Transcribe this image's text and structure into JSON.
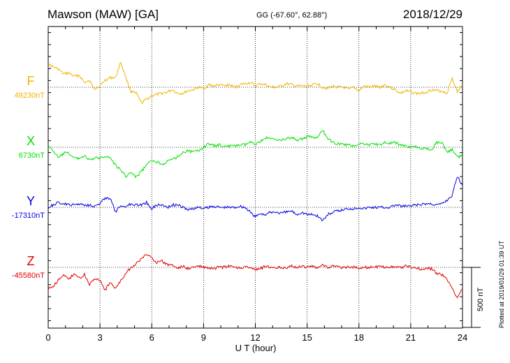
{
  "header": {
    "station": "Mawson (MAW)  [GA]",
    "coords": "GG (-67.60°,  62.88°)",
    "date": "2018/12/29"
  },
  "plot_note": "Plotted at 2019/01/29 01:39 UT",
  "scale_label": "500 nT",
  "chart_data": {
    "type": "line",
    "title": "Mawson (MAW)  [GA]",
    "xlabel": "U T (hour)",
    "xlim": [
      0,
      24
    ],
    "x_ticks": [
      "0",
      "3",
      "6",
      "9",
      "12",
      "15",
      "18",
      "21",
      "24"
    ],
    "scale_bar_nT": 500,
    "grid": true,
    "series": [
      {
        "name": "F",
        "color": "#f0b400",
        "baseline_label": "49230nT",
        "baseline_nT": 49230,
        "x": [
          0,
          0.3,
          0.6,
          0.9,
          1.2,
          1.5,
          1.8,
          2.1,
          2.4,
          2.7,
          3.0,
          3.3,
          3.6,
          3.9,
          4.2,
          4.5,
          4.8,
          5.1,
          5.4,
          5.7,
          6.0,
          6.3,
          6.6,
          6.9,
          7.2,
          7.5,
          7.8,
          8.1,
          8.4,
          8.7,
          9.0,
          9.3,
          9.6,
          9.9,
          10.2,
          10.5,
          10.8,
          11.1,
          11.4,
          11.7,
          12.0,
          12.3,
          12.6,
          12.9,
          13.2,
          13.5,
          13.8,
          14.1,
          14.4,
          14.7,
          15.0,
          15.3,
          15.6,
          15.9,
          16.2,
          16.5,
          16.8,
          17.1,
          17.4,
          17.7,
          18.0,
          18.3,
          18.6,
          18.9,
          19.2,
          19.5,
          19.8,
          20.1,
          20.4,
          20.7,
          21.0,
          21.3,
          21.6,
          21.9,
          22.2,
          22.5,
          22.8,
          23.1,
          23.4,
          23.7,
          24.0
        ],
        "y": [
          190,
          170,
          150,
          110,
          120,
          90,
          100,
          40,
          50,
          -10,
          10,
          60,
          80,
          80,
          210,
          80,
          -40,
          -50,
          -130,
          -100,
          -70,
          -60,
          -50,
          -40,
          -20,
          -50,
          -50,
          -30,
          -20,
          0,
          -10,
          20,
          10,
          20,
          10,
          20,
          0,
          20,
          30,
          40,
          10,
          30,
          20,
          0,
          0,
          10,
          30,
          20,
          10,
          10,
          10,
          20,
          30,
          0,
          -10,
          10,
          0,
          0,
          -20,
          0,
          -30,
          10,
          0,
          10,
          0,
          20,
          0,
          -20,
          -50,
          -30,
          -40,
          -50,
          -50,
          -40,
          -20,
          -30,
          -30,
          -50,
          80,
          -40,
          20
        ]
      },
      {
        "name": "X",
        "color": "#00e000",
        "baseline_label": "6730nT",
        "baseline_nT": 6730,
        "x": [
          0,
          0.3,
          0.6,
          0.9,
          1.2,
          1.5,
          1.8,
          2.1,
          2.4,
          2.7,
          3.0,
          3.3,
          3.6,
          3.9,
          4.2,
          4.5,
          4.8,
          5.1,
          5.4,
          5.7,
          6.0,
          6.3,
          6.6,
          6.9,
          7.2,
          7.5,
          7.8,
          8.1,
          8.4,
          8.7,
          9.0,
          9.3,
          9.6,
          9.9,
          10.2,
          10.5,
          10.8,
          11.1,
          11.4,
          11.7,
          12.0,
          12.3,
          12.6,
          12.9,
          13.2,
          13.5,
          13.8,
          14.1,
          14.4,
          14.7,
          15.0,
          15.3,
          15.6,
          15.9,
          16.2,
          16.5,
          16.8,
          17.1,
          17.4,
          17.7,
          18.0,
          18.3,
          18.6,
          18.9,
          19.2,
          19.5,
          19.8,
          20.1,
          20.4,
          20.7,
          21.0,
          21.3,
          21.6,
          21.9,
          22.2,
          22.5,
          22.8,
          23.1,
          23.4,
          23.7,
          24.0
        ],
        "y": [
          10,
          -30,
          -90,
          -50,
          -50,
          -90,
          -90,
          -70,
          -110,
          -90,
          -90,
          -70,
          -90,
          -150,
          -190,
          -240,
          -210,
          -250,
          -200,
          -150,
          -110,
          -120,
          -140,
          -120,
          -100,
          -80,
          -40,
          -30,
          -40,
          -30,
          0,
          30,
          10,
          20,
          10,
          10,
          10,
          20,
          20,
          40,
          30,
          50,
          80,
          70,
          70,
          60,
          70,
          80,
          60,
          70,
          90,
          80,
          80,
          140,
          70,
          40,
          30,
          20,
          20,
          10,
          30,
          30,
          20,
          30,
          20,
          40,
          30,
          40,
          20,
          10,
          0,
          10,
          -20,
          -10,
          -20,
          40,
          40,
          -40,
          -20,
          -80,
          -70
        ]
      },
      {
        "name": "Y",
        "color": "#0000e0",
        "baseline_label": "-17310nT",
        "baseline_nT": -17310,
        "x": [
          0,
          0.3,
          0.6,
          0.9,
          1.2,
          1.5,
          1.8,
          2.1,
          2.4,
          2.7,
          3.0,
          3.3,
          3.6,
          3.9,
          4.2,
          4.5,
          4.8,
          5.1,
          5.4,
          5.7,
          6.0,
          6.3,
          6.6,
          6.9,
          7.2,
          7.5,
          7.8,
          8.1,
          8.4,
          8.7,
          9.0,
          9.3,
          9.6,
          9.9,
          10.2,
          10.5,
          10.8,
          11.1,
          11.4,
          11.7,
          12.0,
          12.3,
          12.6,
          12.9,
          13.2,
          13.5,
          13.8,
          14.1,
          14.4,
          14.7,
          15.0,
          15.3,
          15.6,
          15.9,
          16.2,
          16.5,
          16.8,
          17.1,
          17.4,
          17.7,
          18.0,
          18.3,
          18.6,
          18.9,
          19.2,
          19.5,
          19.8,
          20.1,
          20.4,
          20.7,
          21.0,
          21.3,
          21.6,
          21.9,
          22.2,
          22.5,
          22.8,
          23.1,
          23.4,
          23.7,
          24.0
        ],
        "y": [
          0,
          20,
          40,
          30,
          20,
          20,
          30,
          20,
          20,
          10,
          30,
          80,
          70,
          -40,
          10,
          10,
          30,
          20,
          20,
          40,
          -10,
          20,
          20,
          0,
          20,
          20,
          0,
          -20,
          -10,
          0,
          -10,
          0,
          10,
          0,
          0,
          0,
          0,
          10,
          0,
          -40,
          -80,
          -50,
          -60,
          -40,
          -40,
          -50,
          -40,
          -30,
          -60,
          -40,
          -60,
          -60,
          -70,
          -110,
          -60,
          -40,
          -30,
          -20,
          -10,
          -10,
          0,
          -10,
          0,
          0,
          0,
          0,
          0,
          20,
          10,
          10,
          10,
          20,
          20,
          30,
          30,
          20,
          30,
          60,
          100,
          260,
          180
        ]
      },
      {
        "name": "Z",
        "color": "#e00000",
        "baseline_label": "-45580nT",
        "baseline_nT": -45580,
        "x": [
          0,
          0.3,
          0.6,
          0.9,
          1.2,
          1.5,
          1.8,
          2.1,
          2.4,
          2.7,
          3.0,
          3.3,
          3.6,
          3.9,
          4.2,
          4.5,
          4.8,
          5.1,
          5.4,
          5.7,
          6.0,
          6.3,
          6.6,
          6.9,
          7.2,
          7.5,
          7.8,
          8.1,
          8.4,
          8.7,
          9.0,
          9.3,
          9.6,
          9.9,
          10.2,
          10.5,
          10.8,
          11.1,
          11.4,
          11.7,
          12.0,
          12.3,
          12.6,
          12.9,
          13.2,
          13.5,
          13.8,
          14.1,
          14.4,
          14.7,
          15.0,
          15.3,
          15.6,
          15.9,
          16.2,
          16.5,
          16.8,
          17.1,
          17.4,
          17.7,
          18.0,
          18.3,
          18.6,
          18.9,
          19.2,
          19.5,
          19.8,
          20.1,
          20.4,
          20.7,
          21.0,
          21.3,
          21.6,
          21.9,
          22.2,
          22.5,
          22.8,
          23.1,
          23.4,
          23.7,
          24.0
        ],
        "y": [
          -180,
          -160,
          -100,
          -70,
          -100,
          -50,
          -90,
          -60,
          -140,
          -90,
          -110,
          -190,
          -120,
          -180,
          -110,
          -50,
          0,
          30,
          70,
          110,
          80,
          40,
          50,
          20,
          20,
          -10,
          10,
          -10,
          0,
          10,
          0,
          -10,
          -10,
          0,
          0,
          10,
          0,
          0,
          0,
          0,
          -20,
          -10,
          10,
          0,
          0,
          0,
          0,
          10,
          0,
          10,
          0,
          10,
          0,
          20,
          0,
          10,
          0,
          0,
          0,
          0,
          0,
          0,
          0,
          0,
          10,
          0,
          10,
          0,
          0,
          10,
          0,
          0,
          -20,
          -10,
          -10,
          -50,
          -60,
          -100,
          -180,
          -250,
          -180
        ]
      }
    ]
  }
}
